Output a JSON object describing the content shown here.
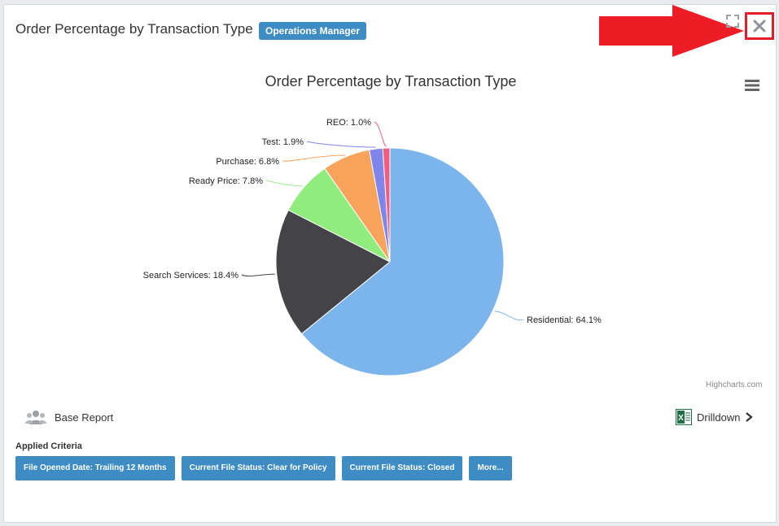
{
  "header": {
    "title": "Order Percentage by Transaction Type",
    "role_badge": "Operations Manager"
  },
  "chart_data": {
    "type": "pie",
    "title": "Order Percentage by Transaction Type",
    "slices": [
      {
        "name": "Residential",
        "value": 64.1,
        "label": "Residential: 64.1%",
        "color": "#7cb5ec"
      },
      {
        "name": "Search Services",
        "value": 18.4,
        "label": "Search Services: 18.4%",
        "color": "#434348"
      },
      {
        "name": "Ready Price",
        "value": 7.8,
        "label": "Ready Price: 7.8%",
        "color": "#90ed7d"
      },
      {
        "name": "Purchase",
        "value": 6.8,
        "label": "Purchase: 6.8%",
        "color": "#f7a35c"
      },
      {
        "name": "Test",
        "value": 1.9,
        "label": "Test: 1.9%",
        "color": "#8085e9"
      },
      {
        "name": "REO",
        "value": 1.0,
        "label": "REO: 1.0%",
        "color": "#f15c80"
      }
    ],
    "credits": "Highcharts.com"
  },
  "footer": {
    "base_report": "Base Report",
    "drilldown": "Drilldown"
  },
  "criteria": {
    "heading": "Applied Criteria",
    "items": [
      "File Opened Date: Trailing 12 Months",
      "Current File Status: Clear for Policy",
      "Current File Status: Closed",
      "More..."
    ]
  },
  "colors": {
    "accent": "#3d8cc4",
    "annotation_red": "#e11d25"
  }
}
